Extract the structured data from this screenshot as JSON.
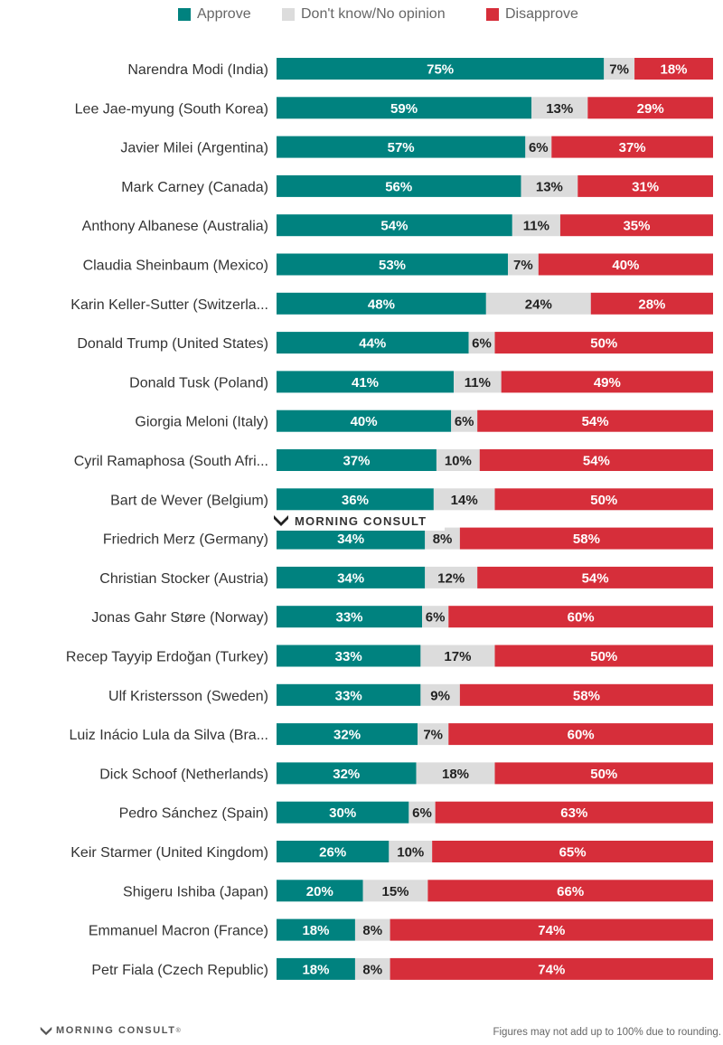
{
  "chart_data": {
    "type": "bar",
    "orientation": "horizontal",
    "stacked": true,
    "legend_position": "top",
    "series": [
      {
        "name": "Approve",
        "color": "#00827f"
      },
      {
        "name": "Don't know/No opinion",
        "color": "#dcdcdc"
      },
      {
        "name": "Disapprove",
        "color": "#d62e3a"
      }
    ],
    "leaders": [
      {
        "name": "Narendra Modi (India)",
        "approve": 75,
        "dont_know": 7,
        "disapprove": 18
      },
      {
        "name": "Lee Jae-myung (South Korea)",
        "approve": 59,
        "dont_know": 13,
        "disapprove": 29
      },
      {
        "name": "Javier Milei (Argentina)",
        "approve": 57,
        "dont_know": 6,
        "disapprove": 37
      },
      {
        "name": "Mark Carney (Canada)",
        "approve": 56,
        "dont_know": 13,
        "disapprove": 31
      },
      {
        "name": "Anthony Albanese (Australia)",
        "approve": 54,
        "dont_know": 11,
        "disapprove": 35
      },
      {
        "name": "Claudia Sheinbaum (Mexico)",
        "approve": 53,
        "dont_know": 7,
        "disapprove": 40
      },
      {
        "name": "Karin Keller-Sutter (Switzerla...",
        "approve": 48,
        "dont_know": 24,
        "disapprove": 28
      },
      {
        "name": "Donald Trump (United States)",
        "approve": 44,
        "dont_know": 6,
        "disapprove": 50
      },
      {
        "name": "Donald Tusk (Poland)",
        "approve": 41,
        "dont_know": 11,
        "disapprove": 49
      },
      {
        "name": "Giorgia Meloni (Italy)",
        "approve": 40,
        "dont_know": 6,
        "disapprove": 54
      },
      {
        "name": "Cyril Ramaphosa (South Afri...",
        "approve": 37,
        "dont_know": 10,
        "disapprove": 54
      },
      {
        "name": "Bart de Wever (Belgium)",
        "approve": 36,
        "dont_know": 14,
        "disapprove": 50
      },
      {
        "name": "Friedrich Merz (Germany)",
        "approve": 34,
        "dont_know": 8,
        "disapprove": 58
      },
      {
        "name": "Christian Stocker (Austria)",
        "approve": 34,
        "dont_know": 12,
        "disapprove": 54
      },
      {
        "name": "Jonas Gahr Støre (Norway)",
        "approve": 33,
        "dont_know": 6,
        "disapprove": 60
      },
      {
        "name": "Recep Tayyip Erdoğan (Turkey)",
        "approve": 33,
        "dont_know": 17,
        "disapprove": 50
      },
      {
        "name": "Ulf Kristersson (Sweden)",
        "approve": 33,
        "dont_know": 9,
        "disapprove": 58
      },
      {
        "name": "Luiz Inácio Lula da Silva (Bra...",
        "approve": 32,
        "dont_know": 7,
        "disapprove": 60
      },
      {
        "name": "Dick Schoof (Netherlands)",
        "approve": 32,
        "dont_know": 18,
        "disapprove": 50
      },
      {
        "name": "Pedro Sánchez (Spain)",
        "approve": 30,
        "dont_know": 6,
        "disapprove": 63
      },
      {
        "name": "Keir Starmer (United Kingdom)",
        "approve": 26,
        "dont_know": 10,
        "disapprove": 65
      },
      {
        "name": "Shigeru Ishiba (Japan)",
        "approve": 20,
        "dont_know": 15,
        "disapprove": 66
      },
      {
        "name": "Emmanuel Macron (France)",
        "approve": 18,
        "dont_know": 8,
        "disapprove": 74
      },
      {
        "name": "Petr Fiala (Czech Republic)",
        "approve": 18,
        "dont_know": 8,
        "disapprove": 74
      }
    ],
    "value_suffix": "%",
    "xlim": [
      0,
      100
    ]
  },
  "branding": {
    "logo_text": "MORNING CONSULT",
    "logo_mark": "®"
  },
  "footnote": "Figures may not add up to 100% due to rounding."
}
